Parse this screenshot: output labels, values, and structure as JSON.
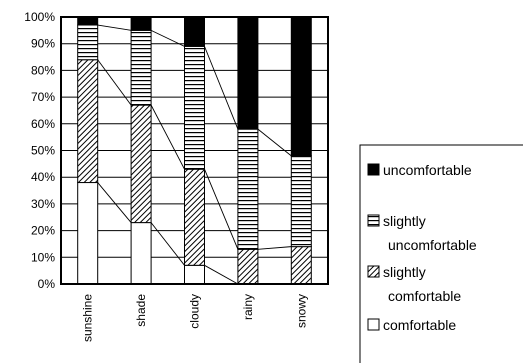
{
  "chart_data": {
    "type": "bar",
    "stacked": "100%",
    "categories": [
      "sunshine",
      "shade",
      "cloudy",
      "rainy",
      "snowy"
    ],
    "series": [
      {
        "name": "comfortable",
        "values": [
          38,
          23,
          7,
          0,
          0
        ],
        "pattern": "white"
      },
      {
        "name": "slightly comfortable",
        "values": [
          46,
          44,
          36,
          13,
          14
        ],
        "pattern": "diagonal-hatch"
      },
      {
        "name": "slightly uncomfortable",
        "values": [
          13,
          28,
          46,
          45,
          34
        ],
        "pattern": "horizontal-lines"
      },
      {
        "name": "uncomfortable",
        "values": [
          3,
          5,
          11,
          42,
          52
        ],
        "pattern": "black"
      }
    ],
    "y_ticks": [
      "0%",
      "10%",
      "20%",
      "30%",
      "40%",
      "50%",
      "60%",
      "70%",
      "80%",
      "90%",
      "100%"
    ],
    "ylim": [
      0,
      100
    ],
    "connector_lines": true,
    "legend_position": "right",
    "legend_labels": {
      "uncomfortable": "uncomfortable",
      "slightly_uncomfortable_1": "slightly",
      "slightly_uncomfortable_2": "uncomfortable",
      "slightly_comfortable_1": "slightly",
      "slightly_comfortable_2": "comfortable",
      "comfortable": "comfortable"
    },
    "colors": {
      "black": "#000000",
      "white": "#ffffff"
    }
  }
}
